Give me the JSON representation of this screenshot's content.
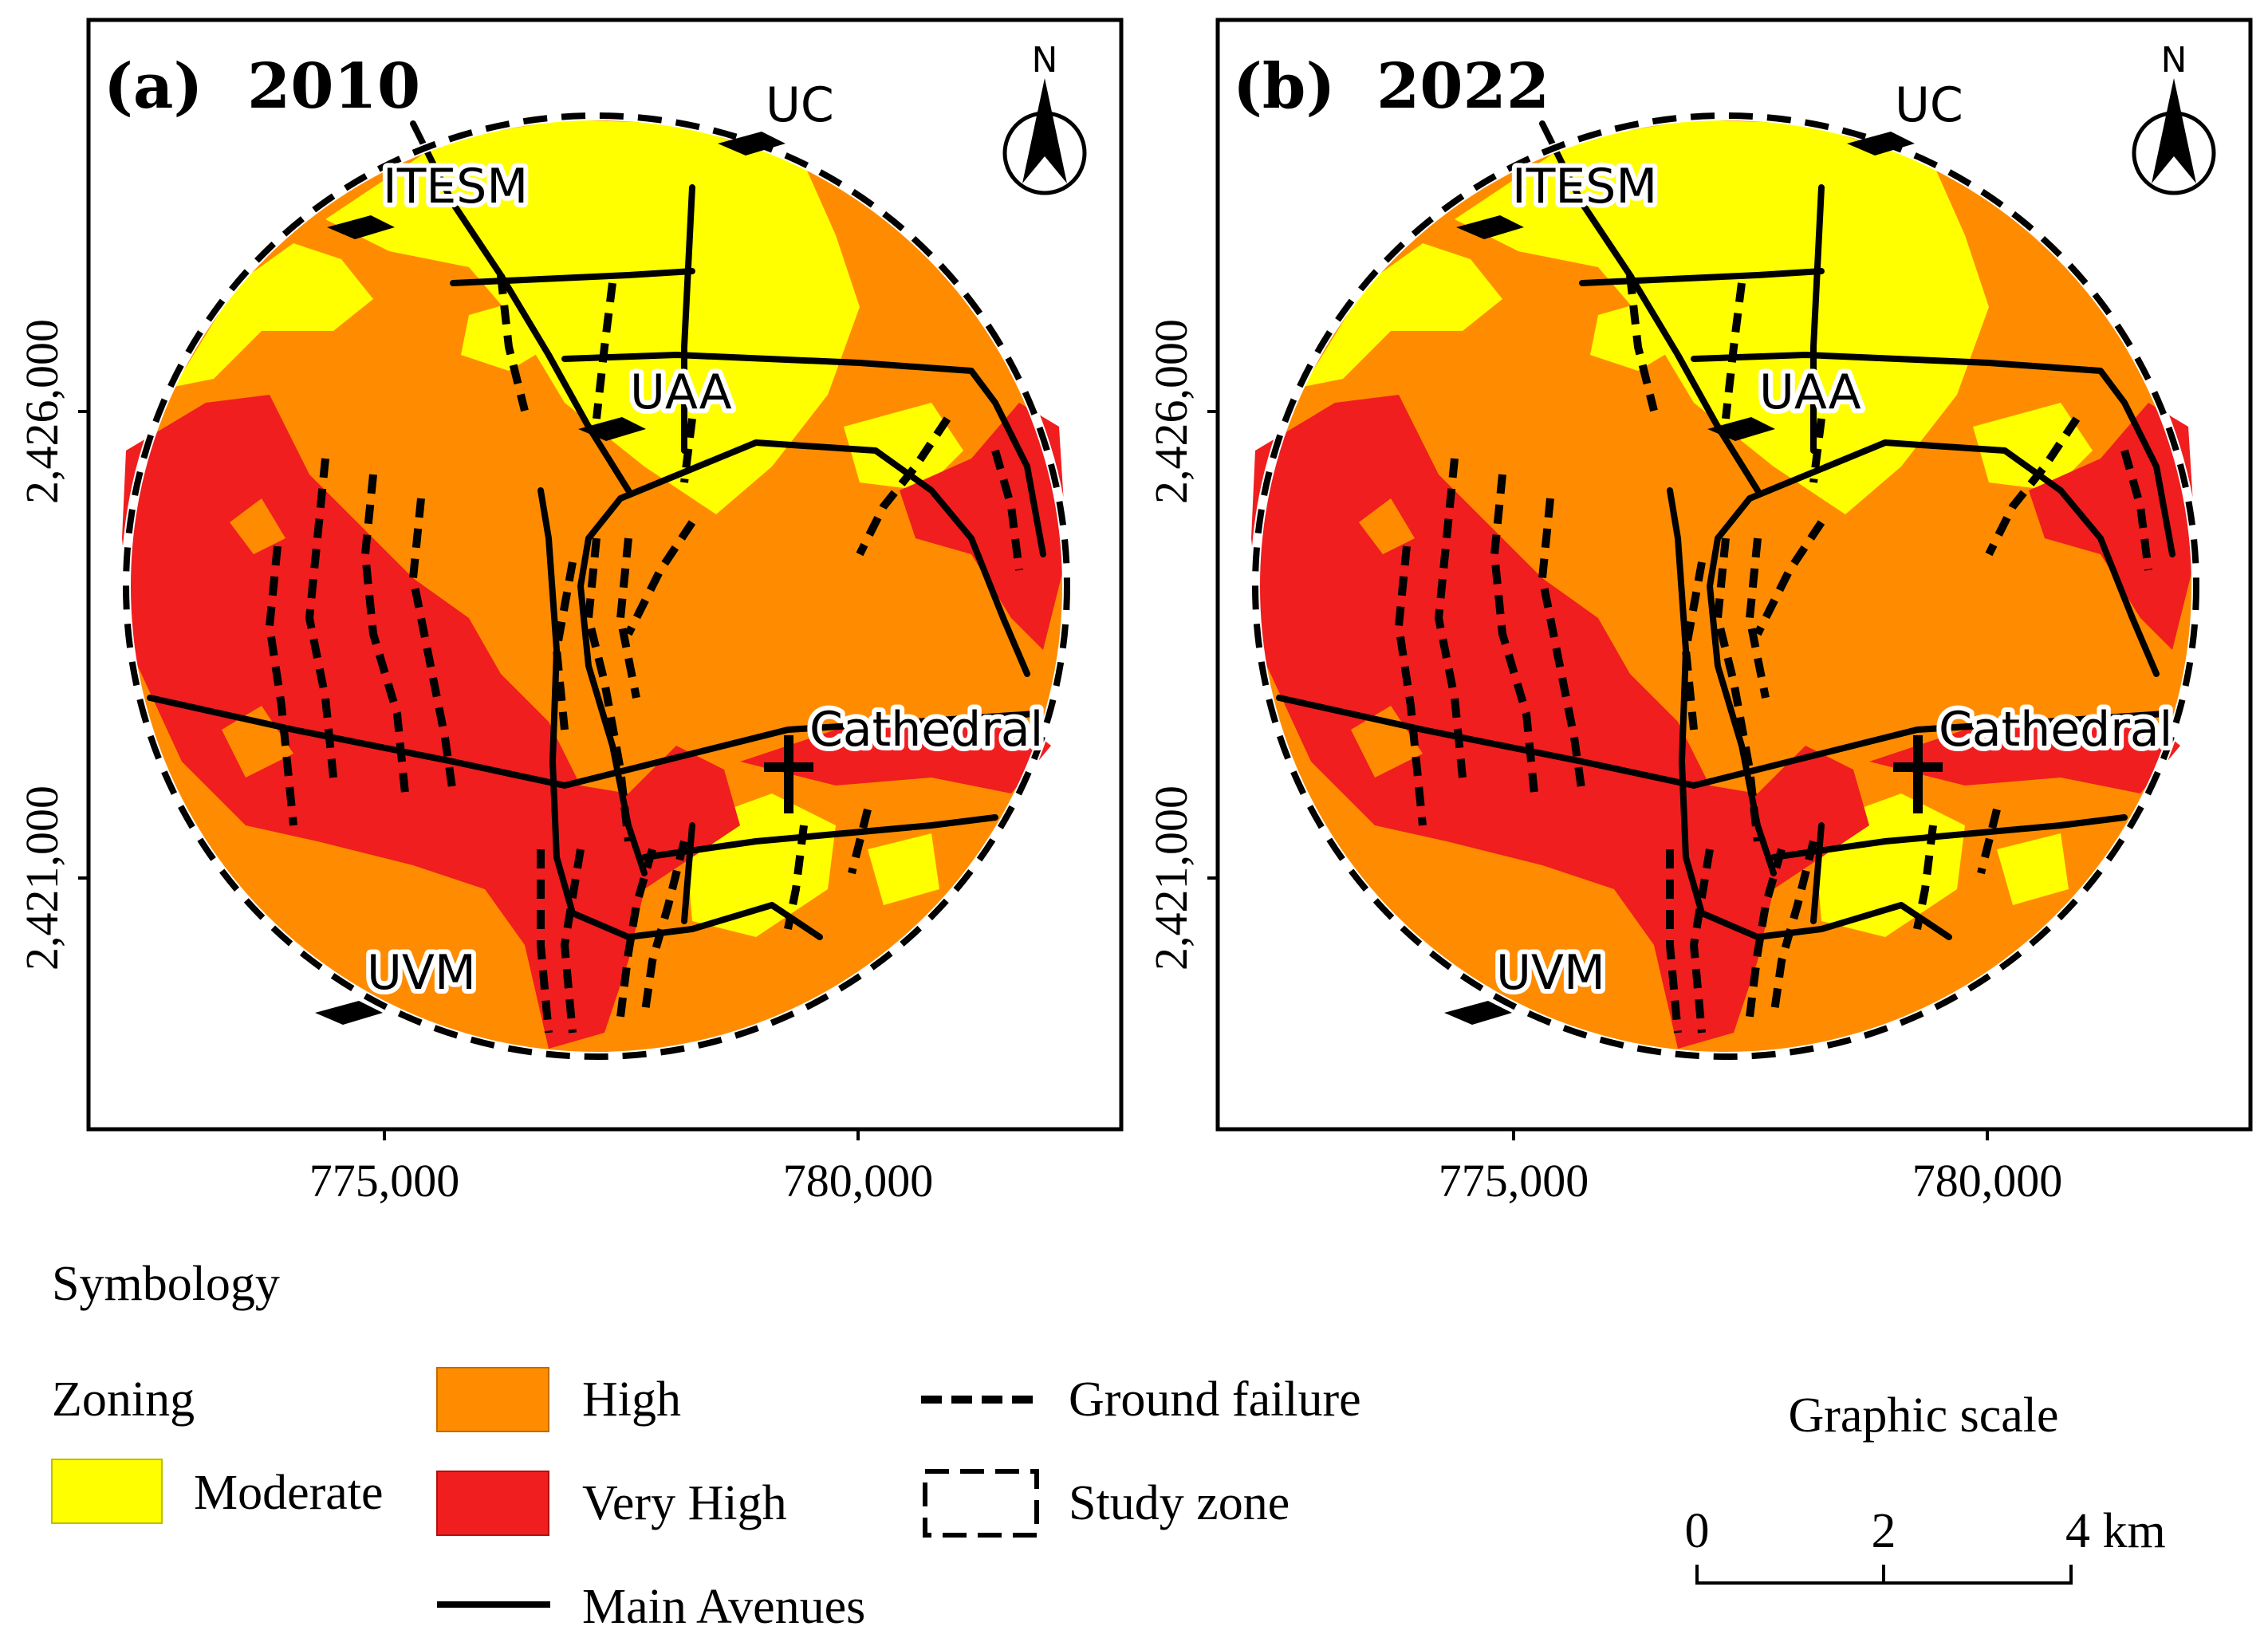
{
  "panels": [
    {
      "label": "(a)",
      "year": "2010",
      "north_label": "N",
      "places": {
        "uc": "UC",
        "itesm": "ITESM",
        "uaa": "UAA",
        "cathedral": "Cathedral",
        "uvm": "UVM"
      },
      "y_ticks": [
        "2,426,000",
        "2,421,000"
      ],
      "x_ticks": [
        "775,000",
        "780,000"
      ]
    },
    {
      "label": "(b)",
      "year": "2022",
      "north_label": "N",
      "places": {
        "uc": "UC",
        "itesm": "ITESM",
        "uaa": "UAA",
        "cathedral": "Cathedral",
        "uvm": "UVM"
      },
      "y_ticks": [
        "2,426,000",
        "2,421,000"
      ],
      "x_ticks": [
        "775,000",
        "780,000"
      ]
    }
  ],
  "legend": {
    "title": "Symbology",
    "zoning_title": "Zoning",
    "classes": [
      {
        "name": "Moderate",
        "color": "#ffff00"
      },
      {
        "name": "High",
        "color": "#ff8c00"
      },
      {
        "name": "Very High",
        "color": "#f01e1e"
      }
    ],
    "ground_failure": "Ground failure",
    "study_zone": "Study zone",
    "main_avenues": "Main Avenues"
  },
  "scale": {
    "title": "Graphic scale",
    "labels": [
      "0",
      "2",
      "4 km"
    ]
  },
  "colors": {
    "moderate": "#ffff00",
    "high": "#ff8c00",
    "very_high": "#f01e1e",
    "line": "#000000"
  }
}
